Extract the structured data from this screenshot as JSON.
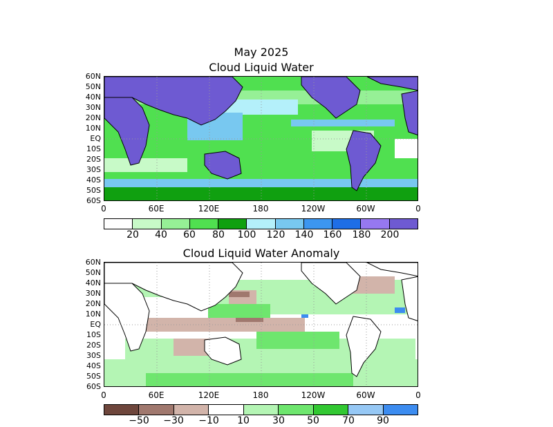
{
  "header": {
    "date": "May 2025"
  },
  "panel1": {
    "title": "Cloud Liquid Water",
    "colorbar": {
      "colors": [
        "#ffffff",
        "#c8fac8",
        "#96f096",
        "#50e050",
        "#10a010",
        "#b4f0fa",
        "#78c8f0",
        "#3c96f0",
        "#1e6ee6",
        "#9678f0",
        "#6e5ad2"
      ],
      "labels": [
        "20",
        "40",
        "60",
        "80",
        "100",
        "120",
        "140",
        "160",
        "180",
        "200"
      ]
    }
  },
  "panel2": {
    "title": "Cloud Liquid Water Anomaly",
    "colorbar": {
      "colors": [
        "#6e463c",
        "#a0786e",
        "#d2b4aa",
        "#ffffff",
        "#b4f5b4",
        "#6ee66e",
        "#32c832",
        "#96c8f5",
        "#3c8cf0"
      ],
      "labels": [
        "−50",
        "−30",
        "−10",
        "10",
        "30",
        "50",
        "70",
        "90"
      ]
    }
  },
  "axes": {
    "lat_labels": [
      "60N",
      "50N",
      "40N",
      "30N",
      "20N",
      "10N",
      "EQ",
      "10S",
      "20S",
      "30S",
      "40S",
      "50S",
      "60S"
    ],
    "lon_labels": [
      "0",
      "60E",
      "120E",
      "180",
      "120W",
      "60W",
      "0"
    ]
  },
  "colors": {
    "land": "#6e5ad2",
    "ocean_base": "#50e050",
    "coast": "#000000"
  }
}
